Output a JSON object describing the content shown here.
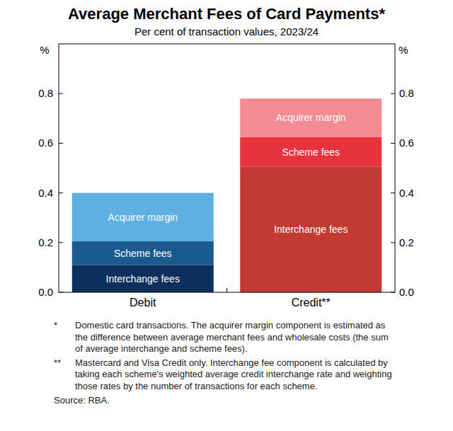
{
  "chart_data": {
    "type": "bar",
    "stacked": true,
    "title": "Average Merchant Fees of Card Payments*",
    "subtitle": "Per cent of transaction values, 2023/24",
    "y_label": "%",
    "categories": [
      "Debit",
      "Credit**"
    ],
    "series": [
      {
        "name": "Interchange fees",
        "colors": [
          "#0c2f5e",
          "#c23a32"
        ],
        "values": [
          0.11,
          0.505
        ]
      },
      {
        "name": "Scheme fees",
        "colors": [
          "#1b5a8f",
          "#e8323e"
        ],
        "values": [
          0.095,
          0.12
        ]
      },
      {
        "name": "Acquirer margin",
        "colors": [
          "#5cb0e2",
          "#f38b93"
        ],
        "values": [
          0.195,
          0.155
        ]
      }
    ],
    "ylim": [
      0,
      1
    ],
    "yticks": [
      {
        "value": 0,
        "label": "0.0"
      },
      0.2,
      0.4,
      0.6,
      0.8
    ],
    "grid": false,
    "notes": [
      {
        "marker": "*",
        "text": "Domestic card transactions. The acquirer margin component is estimated as the difference between average merchant fees and wholesale costs (the sum of average interchange and scheme fees)."
      },
      {
        "marker": "**",
        "text": "Mastercard and Visa Credit only. Interchange fee component is calculated by taking each scheme's weighted average credit interchange rate and weighting those rates by the number of transactions for each scheme."
      }
    ],
    "source": "Source: RBA."
  }
}
